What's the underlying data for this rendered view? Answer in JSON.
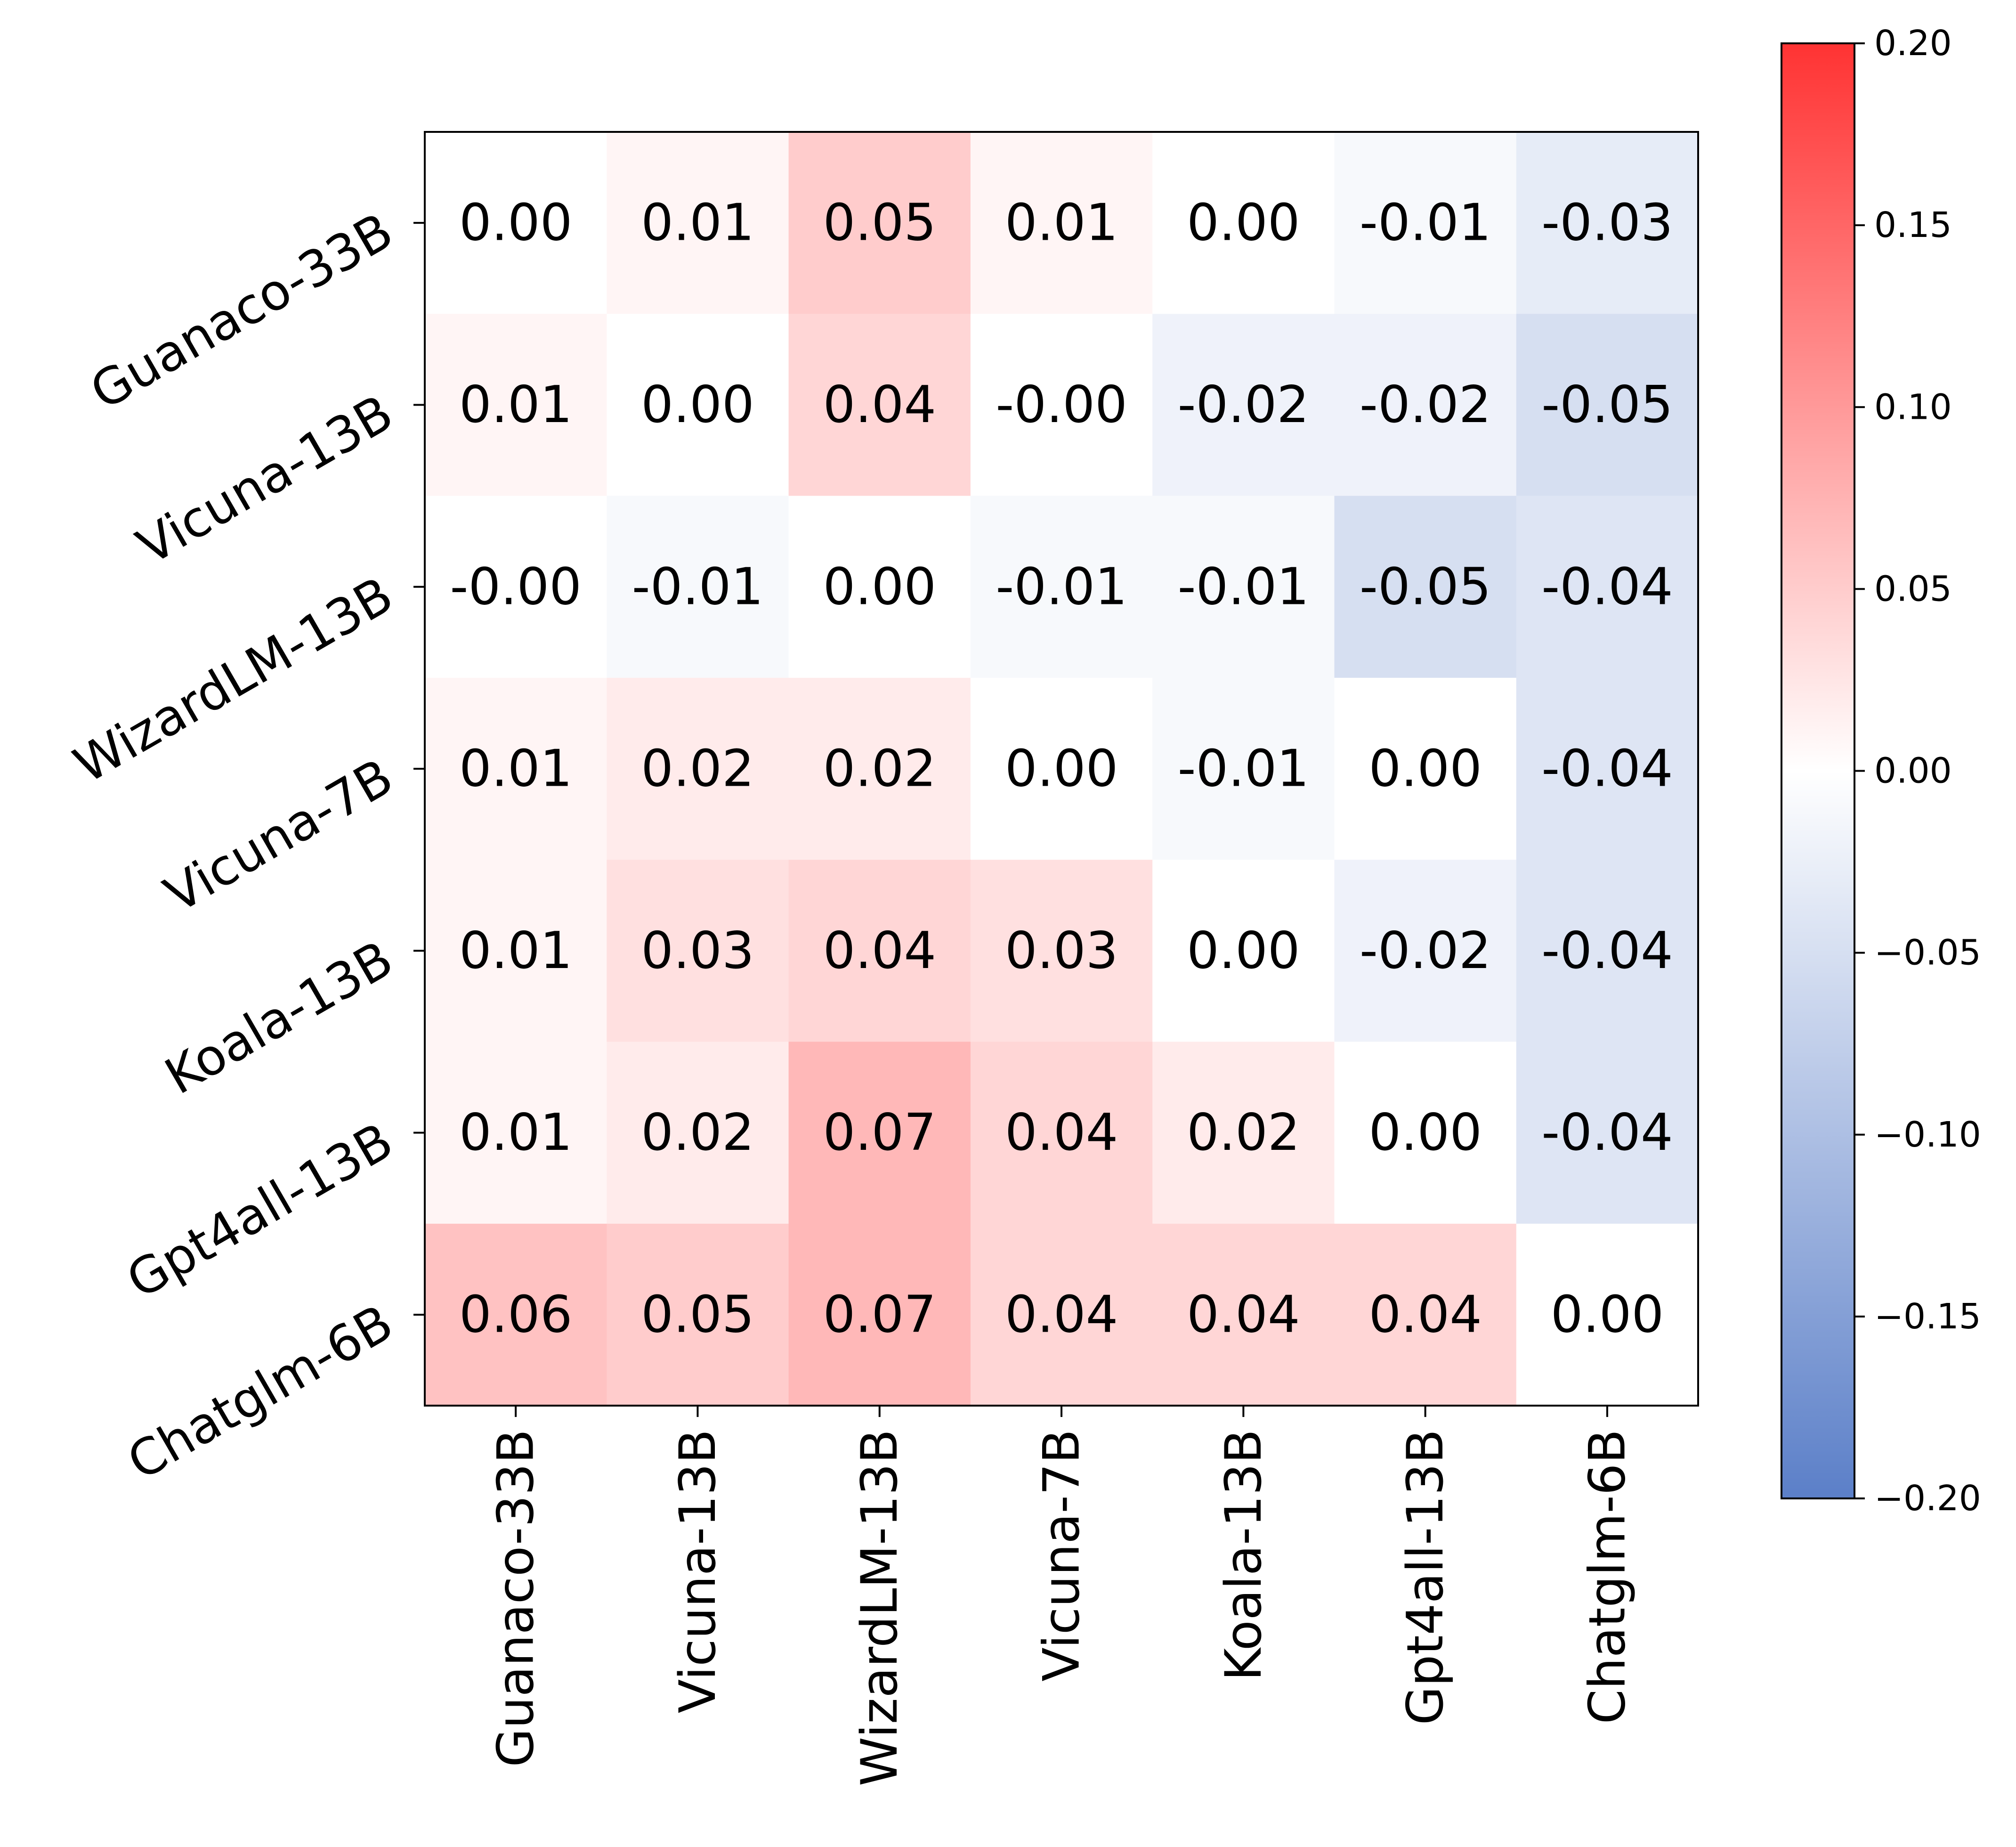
{
  "chart_data": {
    "type": "heatmap",
    "title": "",
    "xlabel": "",
    "ylabel": "",
    "rows": [
      "Guanaco-33B",
      "Vicuna-13B",
      "WizardLM-13B",
      "Vicuna-7B",
      "Koala-13B",
      "Gpt4all-13B",
      "Chatglm-6B"
    ],
    "columns": [
      "Guanaco-33B",
      "Vicuna-13B",
      "WizardLM-13B",
      "Vicuna-7B",
      "Koala-13B",
      "Gpt4all-13B",
      "Chatglm-6B"
    ],
    "values": [
      [
        0.0,
        0.01,
        0.05,
        0.01,
        0.0,
        -0.01,
        -0.03
      ],
      [
        0.01,
        0.0,
        0.04,
        -0.0,
        -0.02,
        -0.02,
        -0.05
      ],
      [
        -0.0,
        -0.01,
        0.0,
        -0.01,
        -0.01,
        -0.05,
        -0.04
      ],
      [
        0.01,
        0.02,
        0.02,
        0.0,
        -0.01,
        0.0,
        -0.04
      ],
      [
        0.01,
        0.03,
        0.04,
        0.03,
        0.0,
        -0.02,
        -0.04
      ],
      [
        0.01,
        0.02,
        0.07,
        0.04,
        0.02,
        0.0,
        -0.04
      ],
      [
        0.06,
        0.05,
        0.07,
        0.04,
        0.04,
        0.04,
        0.0
      ]
    ],
    "cell_labels": [
      [
        "0.00",
        "0.01",
        "0.05",
        "0.01",
        "0.00",
        "-0.01",
        "-0.03"
      ],
      [
        "0.01",
        "0.00",
        "0.04",
        "-0.00",
        "-0.02",
        "-0.02",
        "-0.05"
      ],
      [
        "-0.00",
        "-0.01",
        "0.00",
        "-0.01",
        "-0.01",
        "-0.05",
        "-0.04"
      ],
      [
        "0.01",
        "0.02",
        "0.02",
        "0.00",
        "-0.01",
        "0.00",
        "-0.04"
      ],
      [
        "0.01",
        "0.03",
        "0.04",
        "0.03",
        "0.00",
        "-0.02",
        "-0.04"
      ],
      [
        "0.01",
        "0.02",
        "0.07",
        "0.04",
        "0.02",
        "0.00",
        "-0.04"
      ],
      [
        "0.06",
        "0.05",
        "0.07",
        "0.04",
        "0.04",
        "0.04",
        "0.00"
      ]
    ],
    "colorbar": {
      "range": [
        -0.2,
        0.2
      ],
      "ticks": [
        0.2,
        0.15,
        0.1,
        0.05,
        0.0,
        -0.05,
        -0.1,
        -0.15,
        -0.2
      ],
      "tick_labels": [
        "0.20",
        "0.15",
        "0.10",
        "0.05",
        "0.00",
        "−0.05",
        "−0.10",
        "−0.15",
        "−0.20"
      ],
      "colors": {
        "low": "#5b7fc8",
        "mid": "#ffffff",
        "high": "#ff3333"
      }
    },
    "grid": false,
    "legend": "colorbar-right"
  }
}
